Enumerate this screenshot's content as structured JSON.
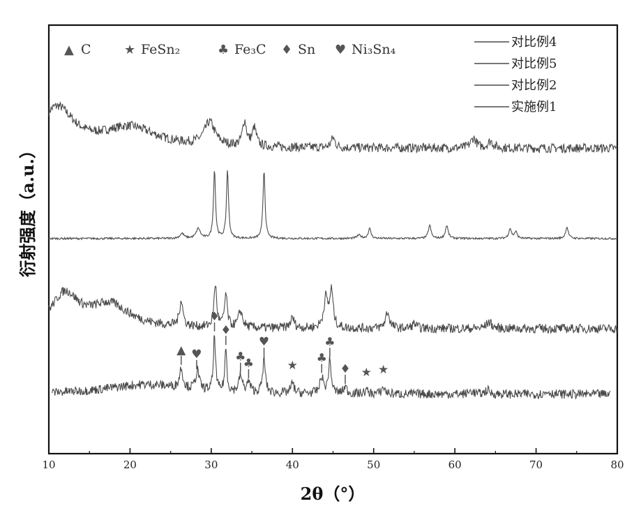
{
  "chart_data": {
    "type": "line",
    "xlabel": "2θ（°）",
    "ylabel": "衍射强度（a.u.）",
    "xlim": [
      10,
      80
    ],
    "x_ticks": [
      10,
      20,
      30,
      40,
      50,
      60,
      70,
      80
    ],
    "grid": false,
    "legend_position": "top-right",
    "series": [
      {
        "name": "对比例4",
        "baseline": 0.75,
        "peaks": [
          [
            11,
            0.12,
            2.5
          ],
          [
            20,
            0.06,
            4
          ],
          [
            29.8,
            0.07,
            0.8
          ],
          [
            34.1,
            0.075,
            0.3
          ],
          [
            35.3,
            0.055,
            0.3
          ],
          [
            45,
            0.03,
            0.3
          ],
          [
            62.3,
            0.03,
            0.4
          ],
          [
            64.4,
            0.02,
            0.4
          ]
        ]
      },
      {
        "name": "对比例5",
        "baseline": 0.475,
        "peaks": [
          [
            26.4,
            0.015,
            0.3
          ],
          [
            28.4,
            0.03,
            0.3
          ],
          [
            30.4,
            0.21,
            0.15
          ],
          [
            32,
            0.21,
            0.15
          ],
          [
            36.5,
            0.21,
            0.15
          ],
          [
            48.2,
            0.01,
            0.3
          ],
          [
            49.5,
            0.03,
            0.2
          ],
          [
            56.9,
            0.04,
            0.2
          ],
          [
            59,
            0.04,
            0.2
          ],
          [
            66.8,
            0.03,
            0.2
          ],
          [
            67.5,
            0.02,
            0.2
          ],
          [
            73.8,
            0.035,
            0.2
          ]
        ]
      },
      {
        "name": "对比例2",
        "baseline": 0.2,
        "peaks": [
          [
            12,
            0.1,
            2
          ],
          [
            17.5,
            0.07,
            3
          ],
          [
            26.3,
            0.08,
            0.25
          ],
          [
            30.5,
            0.13,
            0.2
          ],
          [
            31.8,
            0.1,
            0.2
          ],
          [
            33.6,
            0.05,
            0.3
          ],
          [
            40,
            0.03,
            0.3
          ],
          [
            44.1,
            0.09,
            0.3
          ],
          [
            44.8,
            0.11,
            0.25
          ],
          [
            51.7,
            0.05,
            0.3
          ],
          [
            55,
            0.015,
            0.3
          ],
          [
            64.2,
            0.02,
            0.4
          ]
        ]
      },
      {
        "name": "实施例1",
        "baseline": 0.0,
        "peaks": [
          [
            22,
            0.03,
            6
          ],
          [
            26.3,
            0.06,
            0.25
          ],
          [
            28.3,
            0.06,
            0.25
          ],
          [
            30.4,
            0.17,
            0.15
          ],
          [
            31.8,
            0.13,
            0.15
          ],
          [
            33.6,
            0.05,
            0.25
          ],
          [
            34.6,
            0.03,
            0.25
          ],
          [
            36.5,
            0.1,
            0.2
          ],
          [
            40,
            0.03,
            0.25
          ],
          [
            43.6,
            0.05,
            0.25
          ],
          [
            44.6,
            0.1,
            0.2
          ],
          [
            46.5,
            0.02,
            0.25
          ],
          [
            49.1,
            0.01,
            0.25
          ],
          [
            51.2,
            0.02,
            0.25
          ],
          [
            62,
            0.01,
            0.3
          ],
          [
            64,
            0.012,
            0.3
          ],
          [
            71.5,
            0.008,
            0.3
          ]
        ]
      }
    ],
    "phase_legend": [
      {
        "symbol": "▲",
        "label": "C"
      },
      {
        "symbol": "★",
        "label": "FeSn₂"
      },
      {
        "symbol": "♣",
        "label": "Fe₃C"
      },
      {
        "symbol": "♦",
        "label": "Sn"
      },
      {
        "symbol": "♥",
        "label": "Ni₃Sn₄"
      }
    ],
    "peak_markers": [
      {
        "x": 26.3,
        "symbol": "▲"
      },
      {
        "x": 28.2,
        "symbol": "♥"
      },
      {
        "x": 30.4,
        "symbol": "♦"
      },
      {
        "x": 31.8,
        "symbol": "♦"
      },
      {
        "x": 33.6,
        "symbol": "♣"
      },
      {
        "x": 34.6,
        "symbol": "♣"
      },
      {
        "x": 36.5,
        "symbol": "♥"
      },
      {
        "x": 40.0,
        "symbol": "★"
      },
      {
        "x": 43.6,
        "symbol": "♣"
      },
      {
        "x": 44.6,
        "symbol": "♣"
      },
      {
        "x": 46.5,
        "symbol": "♦"
      },
      {
        "x": 49.1,
        "symbol": "★"
      },
      {
        "x": 51.2,
        "symbol": "★"
      }
    ]
  },
  "colors": {
    "line": "#4a4a4a",
    "axis": "#111111",
    "marker": "#555555"
  }
}
